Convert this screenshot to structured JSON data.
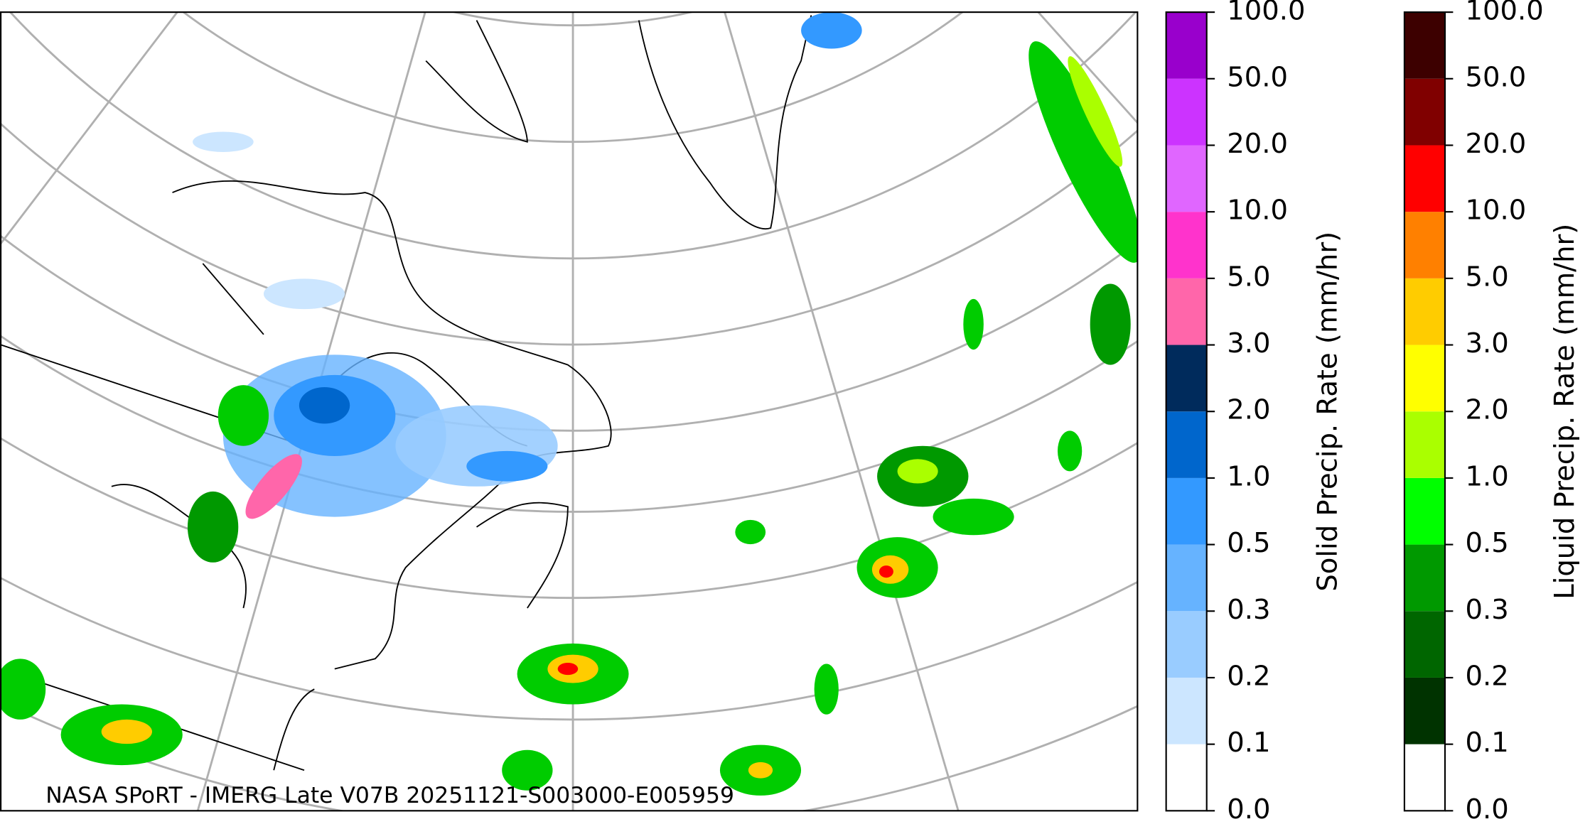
{
  "caption": "NASA SPoRT - IMERG Late V07B 20251121-S003000-E005959",
  "colorbars": [
    {
      "label": "Solid Precip. Rate (mm/hr)",
      "ticks": [
        "0.0",
        "0.1",
        "0.2",
        "0.3",
        "0.5",
        "1.0",
        "2.0",
        "3.0",
        "5.0",
        "10.0",
        "20.0",
        "50.0",
        "100.0"
      ],
      "colors": [
        "#ffffff",
        "#cce6ff",
        "#99ccff",
        "#66b3ff",
        "#3399ff",
        "#0066cc",
        "#002b5c",
        "#ff66aa",
        "#ff33cc",
        "#e066ff",
        "#cc33ff",
        "#9900cc"
      ]
    },
    {
      "label": "Liquid Precip. Rate (mm/hr)",
      "ticks": [
        "0.0",
        "0.1",
        "0.2",
        "0.3",
        "0.5",
        "1.0",
        "2.0",
        "3.0",
        "5.0",
        "10.0",
        "20.0",
        "50.0",
        "100.0"
      ],
      "colors": [
        "#ffffff",
        "#003300",
        "#006600",
        "#009900",
        "#00ff00",
        "#aaff00",
        "#ffff00",
        "#ffcc00",
        "#ff8000",
        "#ff0000",
        "#800000",
        "#3d0000"
      ]
    }
  ]
}
